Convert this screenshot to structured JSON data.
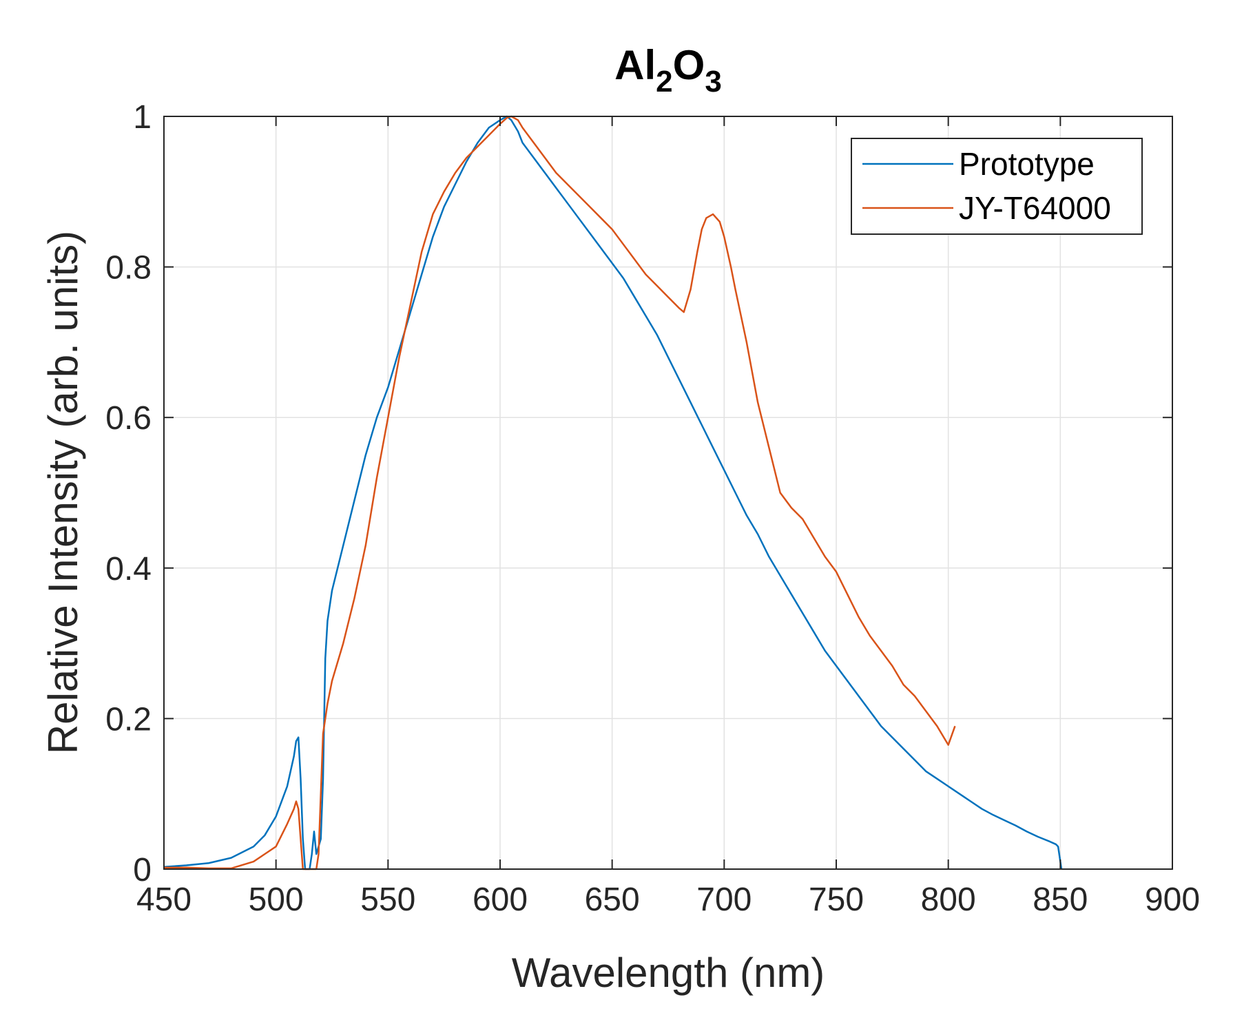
{
  "chart_data": {
    "type": "line",
    "title": "Al2O3",
    "title_parts": {
      "base1": "Al",
      "sub1": "2",
      "base2": "O",
      "sub2": "3"
    },
    "xlabel": "Wavelength (nm)",
    "ylabel": "Relative Intensity (arb. units)",
    "xlim": [
      450,
      900
    ],
    "ylim": [
      0,
      1
    ],
    "xticks": [
      450,
      500,
      550,
      600,
      650,
      700,
      750,
      800,
      850,
      900
    ],
    "yticks": [
      0,
      0.2,
      0.4,
      0.6,
      0.8,
      1
    ],
    "xtick_labels": [
      "450",
      "500",
      "550",
      "600",
      "650",
      "700",
      "750",
      "800",
      "850",
      "900"
    ],
    "ytick_labels": [
      "0",
      "0.2",
      "0.4",
      "0.6",
      "0.8",
      "1"
    ],
    "grid": true,
    "legend_position": "top-right",
    "series": [
      {
        "name": "Prototype",
        "color": "#0072bd",
        "x": [
          450,
          460,
          470,
          480,
          490,
          495,
          500,
          505,
          508,
          509,
          510,
          511,
          512,
          513,
          514,
          515,
          516,
          517,
          518,
          519,
          520,
          521,
          522,
          523,
          525,
          530,
          535,
          540,
          545,
          550,
          555,
          560,
          565,
          570,
          575,
          580,
          585,
          590,
          595,
          600,
          603,
          605,
          608,
          610,
          615,
          620,
          625,
          630,
          635,
          640,
          645,
          650,
          655,
          660,
          665,
          670,
          675,
          680,
          685,
          690,
          695,
          700,
          705,
          710,
          715,
          720,
          725,
          730,
          735,
          740,
          745,
          750,
          755,
          760,
          765,
          770,
          775,
          780,
          785,
          790,
          795,
          800,
          805,
          810,
          815,
          820,
          825,
          830,
          835,
          840,
          845,
          848,
          849,
          850,
          850.5
        ],
        "y": [
          0.003,
          0.005,
          0.008,
          0.015,
          0.03,
          0.045,
          0.07,
          0.11,
          0.15,
          0.17,
          0.175,
          0.12,
          0.04,
          0.0,
          0.0,
          0.0,
          0.02,
          0.05,
          0.02,
          0.03,
          0.04,
          0.12,
          0.28,
          0.33,
          0.37,
          0.43,
          0.49,
          0.55,
          0.6,
          0.64,
          0.69,
          0.74,
          0.79,
          0.84,
          0.88,
          0.91,
          0.94,
          0.965,
          0.985,
          0.995,
          1.0,
          0.995,
          0.98,
          0.965,
          0.945,
          0.925,
          0.905,
          0.885,
          0.865,
          0.845,
          0.825,
          0.805,
          0.785,
          0.76,
          0.735,
          0.71,
          0.68,
          0.65,
          0.62,
          0.59,
          0.56,
          0.53,
          0.5,
          0.47,
          0.445,
          0.415,
          0.39,
          0.365,
          0.34,
          0.315,
          0.29,
          0.27,
          0.25,
          0.23,
          0.21,
          0.19,
          0.175,
          0.16,
          0.145,
          0.13,
          0.12,
          0.11,
          0.1,
          0.09,
          0.08,
          0.072,
          0.065,
          0.058,
          0.05,
          0.043,
          0.037,
          0.033,
          0.03,
          0.01,
          0.0
        ]
      },
      {
        "name": "JY-T64000",
        "color": "#d95319",
        "x": [
          450,
          460,
          470,
          480,
          490,
          495,
          500,
          505,
          508,
          509,
          510,
          511,
          512,
          515,
          518,
          519,
          520,
          521,
          522,
          523,
          525,
          530,
          535,
          540,
          545,
          550,
          555,
          560,
          565,
          570,
          575,
          580,
          585,
          590,
          595,
          600,
          603,
          605,
          608,
          610,
          615,
          620,
          625,
          630,
          635,
          640,
          645,
          650,
          655,
          660,
          665,
          670,
          675,
          680,
          682,
          685,
          688,
          690,
          692,
          695,
          698,
          700,
          703,
          705,
          710,
          715,
          720,
          725,
          730,
          735,
          740,
          745,
          750,
          755,
          760,
          765,
          770,
          775,
          780,
          785,
          790,
          795,
          800,
          803
        ],
        "y": [
          0.002,
          0.002,
          0.001,
          0.001,
          0.01,
          0.02,
          0.03,
          0.06,
          0.08,
          0.09,
          0.08,
          0.04,
          0.0,
          0.0,
          0.0,
          0.02,
          0.1,
          0.18,
          0.2,
          0.22,
          0.25,
          0.3,
          0.36,
          0.43,
          0.52,
          0.6,
          0.68,
          0.75,
          0.82,
          0.87,
          0.9,
          0.925,
          0.945,
          0.96,
          0.975,
          0.99,
          0.998,
          1.0,
          0.995,
          0.985,
          0.965,
          0.945,
          0.925,
          0.91,
          0.895,
          0.88,
          0.865,
          0.85,
          0.83,
          0.81,
          0.79,
          0.775,
          0.76,
          0.745,
          0.74,
          0.77,
          0.82,
          0.85,
          0.865,
          0.87,
          0.86,
          0.84,
          0.8,
          0.77,
          0.7,
          0.62,
          0.56,
          0.5,
          0.48,
          0.465,
          0.44,
          0.415,
          0.395,
          0.365,
          0.335,
          0.31,
          0.29,
          0.27,
          0.245,
          0.23,
          0.21,
          0.19,
          0.165,
          0.19
        ]
      }
    ]
  }
}
